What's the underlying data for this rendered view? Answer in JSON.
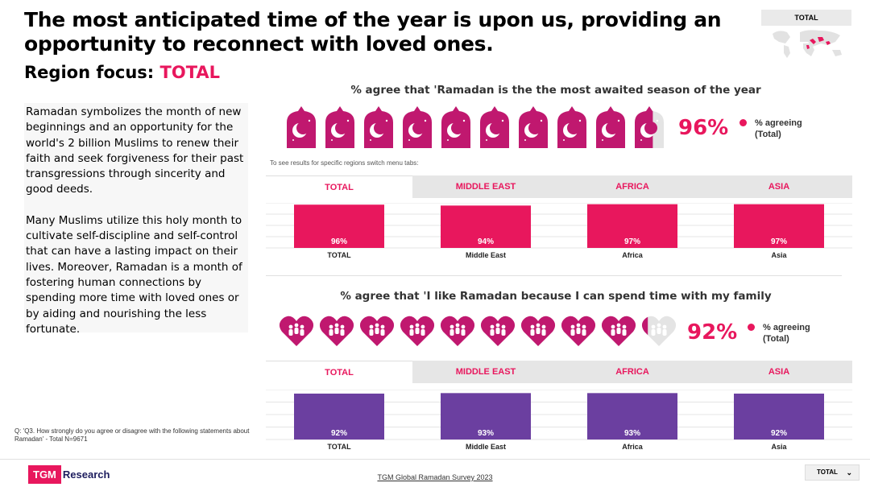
{
  "headline": "The most anticipated time of the year is upon us, providing an opportunity to reconnect with loved ones.",
  "region_focus": {
    "label": "Region focus:",
    "value": "TOTAL"
  },
  "map_badge": "TOTAL",
  "body": {
    "para1": "Ramadan symbolizes the month of new beginnings and an opportunity for the world's 2 billion Muslims to renew their faith and seek forgiveness for their past transgressions through sincerity and good deeds.",
    "para2": "Many Muslims utilize this holy month to cultivate self-discipline and self-control that can have a lasting impact on their lives. Moreover, Ramadan is a month of fostering human connections by spending more time with loved ones or by aiding and nourishing the less fortunate."
  },
  "footnote": "Q: 'Q3. How strongly do you agree or disagree with the following statements about Ramadan' - Total N=9671",
  "hint": "To see results for  specific regions switch menu tabs:",
  "footer": {
    "logo_tgm": "TGM",
    "logo_research": "Research",
    "source": "TGM Global Ramadan Survey 2023",
    "dropdown": "TOTAL"
  },
  "tabs": [
    "TOTAL",
    "MIDDLE EAST",
    "AFRICA",
    "ASIA"
  ],
  "colors": {
    "accent": "#e8175d",
    "magenta": "#c0186f",
    "purple": "#6b3fa0",
    "grey_icon": "#e4e4e4"
  },
  "section1": {
    "question": "% agree that 'Ramadan is the the most awaited season of the year",
    "big_value": "96%",
    "legend": [
      "% agreeing",
      "(Total)"
    ],
    "icon": "lantern-moon-icon"
  },
  "section2": {
    "question": "% agree that 'I like Ramadan because I can spend time with my family",
    "big_value": "92%",
    "legend": [
      "% agreeing",
      "(Total)"
    ],
    "icon": "heart-family-icon"
  },
  "chart_data": [
    {
      "type": "bar",
      "title": "% agree that 'Ramadan is the the most awaited season of the year",
      "categories": [
        "TOTAL",
        "Middle East",
        "Africa",
        "Asia"
      ],
      "values": [
        96,
        94,
        97,
        97
      ],
      "labels": [
        "96%",
        "94%",
        "97%",
        "97%"
      ],
      "ylim": [
        0,
        100
      ],
      "grid": true
    },
    {
      "type": "bar",
      "title": "% agree that 'I like Ramadan because I can spend time with my family",
      "categories": [
        "TOTAL",
        "Middle East",
        "Africa",
        "Asia"
      ],
      "values": [
        92,
        93,
        93,
        92
      ],
      "labels": [
        "92%",
        "93%",
        "93%",
        "92%"
      ],
      "ylim": [
        0,
        100
      ],
      "grid": true
    }
  ]
}
